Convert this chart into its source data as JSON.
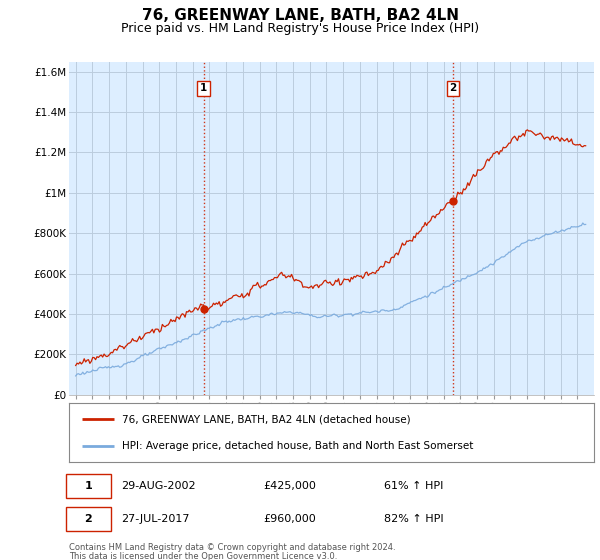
{
  "title": "76, GREENWAY LANE, BATH, BA2 4LN",
  "subtitle": "Price paid vs. HM Land Registry's House Price Index (HPI)",
  "title_fontsize": 11,
  "subtitle_fontsize": 9,
  "background_color": "#ffffff",
  "plot_bg_color": "#ddeeff",
  "grid_color": "#bbccdd",
  "ylim": [
    0,
    1650000
  ],
  "yticks": [
    0,
    200000,
    400000,
    600000,
    800000,
    1000000,
    1200000,
    1400000,
    1600000
  ],
  "ytick_labels": [
    "£0",
    "£200K",
    "£400K",
    "£600K",
    "£800K",
    "£1M",
    "£1.2M",
    "£1.4M",
    "£1.6M"
  ],
  "xstart_year": 1995,
  "xend_year": 2025,
  "sale1": {
    "date_num": 2002.65,
    "price": 425000,
    "label": "1",
    "date_str": "29-AUG-2002",
    "pct": "61% ↑ HPI"
  },
  "sale2": {
    "date_num": 2017.56,
    "price": 960000,
    "label": "2",
    "date_str": "27-JUL-2017",
    "pct": "82% ↑ HPI"
  },
  "legend_line1": "76, GREENWAY LANE, BATH, BA2 4LN (detached house)",
  "legend_line2": "HPI: Average price, detached house, Bath and North East Somerset",
  "footer1": "Contains HM Land Registry data © Crown copyright and database right 2024.",
  "footer2": "This data is licensed under the Open Government Licence v3.0.",
  "hpi_color": "#7aaadd",
  "price_color": "#cc2200",
  "dashed_vline_color": "#cc2200"
}
